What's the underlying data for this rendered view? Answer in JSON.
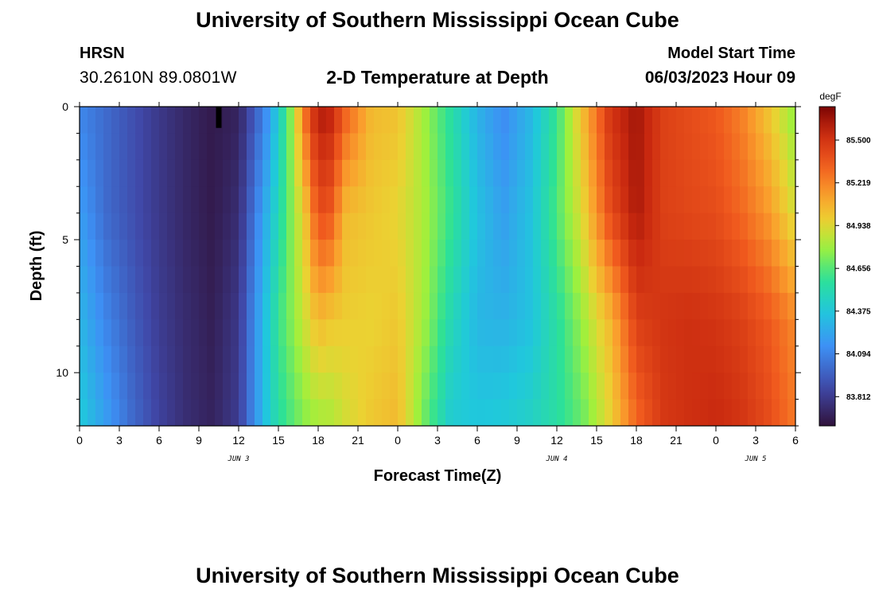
{
  "header": {
    "title": "University of Southern Mississippi Ocean Cube",
    "station": "HRSN",
    "coordinates": "30.2610N  89.0801W",
    "subtitle": "2-D Temperature at Depth",
    "model_start_label": "Model Start Time",
    "model_start_value": "06/03/2023 Hour 09"
  },
  "footer": {
    "title": "University of Southern Mississippi Ocean Cube"
  },
  "chart_data": {
    "type": "heatmap",
    "title": "2-D Temperature at Depth",
    "xlabel": "Forecast Time(Z)",
    "ylabel": "Depth (ft)",
    "x_range": [
      0,
      54
    ],
    "x_units": "hours since Jun 3 00Z",
    "y_range": [
      0,
      12
    ],
    "x_ticks": [
      "0",
      "3",
      "6",
      "9",
      "12",
      "15",
      "18",
      "21",
      "0",
      "3",
      "6",
      "9",
      "12",
      "15",
      "18",
      "21",
      "0",
      "3",
      "6"
    ],
    "x_tick_hours": [
      0,
      3,
      6,
      9,
      12,
      15,
      18,
      21,
      24,
      27,
      30,
      33,
      36,
      39,
      42,
      45,
      48,
      51,
      54
    ],
    "date_labels": [
      {
        "label": "JUN 3",
        "hour": 12
      },
      {
        "label": "JUN 4",
        "hour": 36
      },
      {
        "label": "JUN 5",
        "hour": 51
      }
    ],
    "y_ticks": [
      0,
      5,
      10
    ],
    "colorbar": {
      "unit": "degF",
      "ticks": [
        "85.500",
        "85.219",
        "84.938",
        "84.656",
        "84.375",
        "84.094",
        "83.812"
      ],
      "tick_values": [
        85.5,
        85.219,
        84.938,
        84.656,
        84.375,
        84.094,
        83.812
      ],
      "range": [
        83.62,
        85.72
      ]
    },
    "temperature_field": {
      "x_hours": [
        0,
        2,
        4,
        6,
        8,
        10,
        12,
        14,
        15,
        16,
        17,
        18,
        19,
        20,
        22,
        24,
        26,
        28,
        30,
        32,
        34,
        36,
        38,
        40,
        42,
        44,
        46,
        48,
        50,
        52,
        54
      ],
      "depth_ft": [
        0,
        4,
        8,
        12
      ],
      "rows_degF": [
        [
          84.1,
          84.0,
          83.9,
          83.8,
          83.72,
          83.66,
          83.7,
          84.1,
          84.4,
          84.78,
          85.3,
          85.62,
          85.58,
          85.35,
          85.05,
          85.02,
          84.8,
          84.55,
          84.28,
          84.12,
          84.3,
          84.6,
          85.05,
          85.5,
          85.64,
          85.45,
          85.4,
          85.35,
          85.22,
          85.0,
          84.75
        ],
        [
          84.2,
          84.0,
          83.9,
          83.8,
          83.72,
          83.66,
          83.75,
          84.25,
          84.5,
          84.75,
          85.0,
          85.4,
          85.35,
          85.05,
          85.0,
          84.95,
          84.82,
          84.6,
          84.35,
          84.2,
          84.35,
          84.65,
          84.95,
          85.4,
          85.62,
          85.45,
          85.42,
          85.4,
          85.3,
          85.15,
          84.9
        ],
        [
          84.3,
          84.1,
          83.95,
          83.82,
          83.74,
          83.68,
          83.8,
          84.35,
          84.6,
          84.75,
          84.9,
          85.05,
          85.0,
          84.98,
          84.96,
          85.0,
          84.8,
          84.5,
          84.3,
          84.28,
          84.35,
          84.55,
          84.8,
          85.05,
          85.45,
          85.5,
          85.52,
          85.5,
          85.45,
          85.35,
          85.2
        ],
        [
          84.4,
          84.2,
          84.0,
          83.85,
          83.75,
          83.7,
          83.82,
          84.35,
          84.55,
          84.65,
          84.75,
          84.8,
          84.82,
          84.9,
          85.0,
          85.05,
          84.7,
          84.4,
          84.38,
          84.4,
          84.45,
          84.55,
          84.7,
          84.95,
          85.3,
          85.48,
          85.52,
          85.55,
          85.5,
          85.4,
          85.25
        ]
      ]
    },
    "annotation": {
      "type": "marker",
      "x_hour": 10.5,
      "depth_from": 0,
      "depth_to": 0.5
    }
  }
}
